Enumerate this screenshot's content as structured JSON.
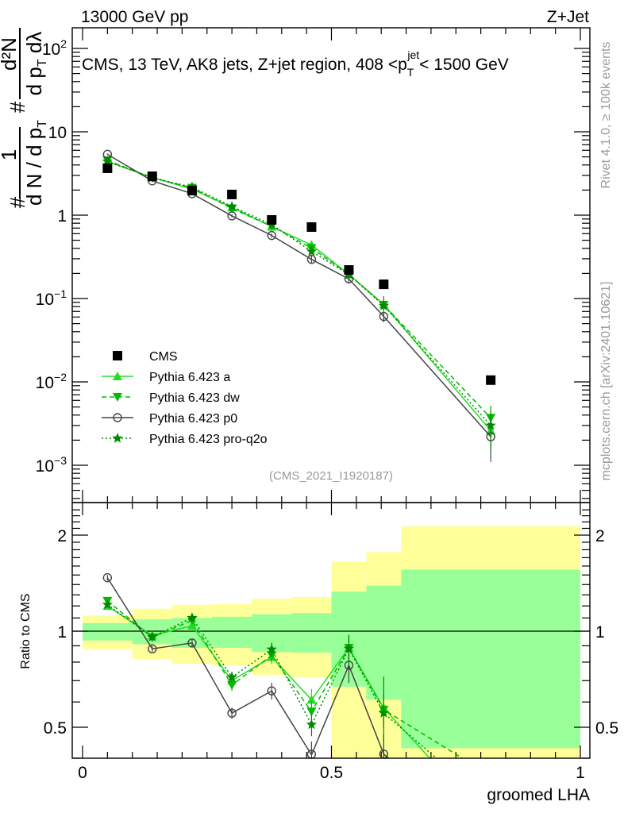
{
  "header": {
    "left": "13000 GeV pp",
    "right": "Z+Jet"
  },
  "side_text": {
    "top": "Rivet 4.1.0, ≥ 100k events",
    "bottom": "mcplots.cern.ch [arXiv:2401.10621]"
  },
  "chart_data": {
    "type": "line",
    "title": {
      "main": "CMS, 13 TeV, AK8 jets, Z+jet region, 408 <p",
      "sub": "T",
      "sup": "jet",
      "tail": "< 1500 GeV"
    },
    "analysis_id": "(CMS_2021_I1920187)",
    "ylabel": {
      "hash": "#",
      "num1": "1",
      "den1": "d N / d p",
      "den1_sub": "T",
      "hash2": "#",
      "num2": "d²N",
      "den2": "d p",
      "den2_sub": "T",
      "den2_tail": " dλ"
    },
    "ratio_ylabel": "Ratio to CMS",
    "xlabel": "groomed LHA",
    "xlim": [
      0,
      1
    ],
    "ylim_log": [
      0.0003,
      170
    ],
    "ratio_ylim_log": [
      0.4,
      2.53
    ],
    "x_ticks": [
      "0",
      "0.5",
      "1"
    ],
    "x_tick_values": [
      0,
      0.5,
      1
    ],
    "y_ticks": [
      {
        "value": 0.001,
        "base": "10",
        "exp": "−3"
      },
      {
        "value": 0.01,
        "base": "10",
        "exp": "−2"
      },
      {
        "value": 0.1,
        "base": "10",
        "exp": "−1"
      },
      {
        "value": 1,
        "base": "1",
        "exp": ""
      },
      {
        "value": 10,
        "base": "10",
        "exp": ""
      },
      {
        "value": 100,
        "base": "10",
        "exp": "2"
      }
    ],
    "ratio_ticks": [
      {
        "value": 0.5,
        "label": "0.5"
      },
      {
        "value": 1,
        "label": "1"
      },
      {
        "value": 2,
        "label": "2"
      }
    ],
    "bin_edges": [
      0,
      0.1,
      0.18,
      0.26,
      0.34,
      0.42,
      0.5,
      0.57,
      0.64,
      1.0
    ],
    "x": [
      0.05,
      0.14,
      0.22,
      0.3,
      0.38,
      0.46,
      0.535,
      0.605,
      0.82
    ],
    "reference": {
      "name": "CMS",
      "values": [
        3.65,
        2.93,
        1.97,
        1.77,
        0.877,
        0.72,
        0.22,
        0.148,
        0.0105
      ],
      "color": "#000000"
    },
    "ratio_band_total": [
      [
        0.877,
        1.12
      ],
      [
        0.818,
        1.176
      ],
      [
        0.79,
        1.21
      ],
      [
        0.78,
        1.215
      ],
      [
        0.73,
        1.265
      ],
      [
        0.717,
        1.28
      ],
      [
        null,
        1.65
      ],
      [
        null,
        1.77
      ],
      [
        null,
        2.13
      ]
    ],
    "ratio_band_stat": [
      [
        0.935,
        1.06
      ],
      [
        0.91,
        1.09
      ],
      [
        0.887,
        1.1
      ],
      [
        0.887,
        1.11
      ],
      [
        0.86,
        1.13
      ],
      [
        0.857,
        1.14
      ],
      [
        0.67,
        1.33
      ],
      [
        0.61,
        1.39
      ],
      [
        0.43,
        1.56
      ]
    ],
    "band_colors": {
      "total": "#ffff99",
      "stat": "#99ff99"
    },
    "series": [
      {
        "name": "Pythia 6.423 a",
        "values": [
          4.38,
          2.84,
          2.05,
          1.24,
          0.728,
          0.439,
          0.195,
          0.085,
          0.0026
        ],
        "rel_err": [
          0.02,
          0.02,
          0.03,
          0.04,
          0.05,
          0.08,
          0.1,
          0.12,
          0.4
        ],
        "color": "#22dd22",
        "dash": "solid",
        "marker": "triangle-up"
      },
      {
        "name": "Pythia 6.423 dw",
        "values": [
          4.54,
          2.8,
          2.13,
          1.2,
          0.737,
          0.403,
          0.195,
          0.084,
          0.0037
        ],
        "rel_err": [
          0.02,
          0.02,
          0.03,
          0.04,
          0.05,
          0.08,
          0.1,
          0.12,
          0.4
        ],
        "color": "#00bb00",
        "dash": "dashed",
        "marker": "triangle-down"
      },
      {
        "name": "Pythia 6.423 p0",
        "values": [
          5.37,
          2.58,
          1.81,
          0.98,
          0.57,
          0.295,
          0.172,
          0.061,
          0.0022
        ],
        "rel_err": [
          0.02,
          0.02,
          0.03,
          0.04,
          0.06,
          0.1,
          0.12,
          0.15,
          0.5
        ],
        "color": "#444444",
        "dash": "solid",
        "marker": "circle-open"
      },
      {
        "name": "Pythia 6.423 pro-q2o",
        "values": [
          4.42,
          2.81,
          2.17,
          1.27,
          0.769,
          0.367,
          0.194,
          0.082,
          0.003
        ],
        "rel_err": [
          0.02,
          0.02,
          0.03,
          0.04,
          0.05,
          0.08,
          0.1,
          0.3,
          0.5
        ],
        "color": "#008800",
        "dash": "dotted",
        "marker": "star"
      }
    ]
  }
}
